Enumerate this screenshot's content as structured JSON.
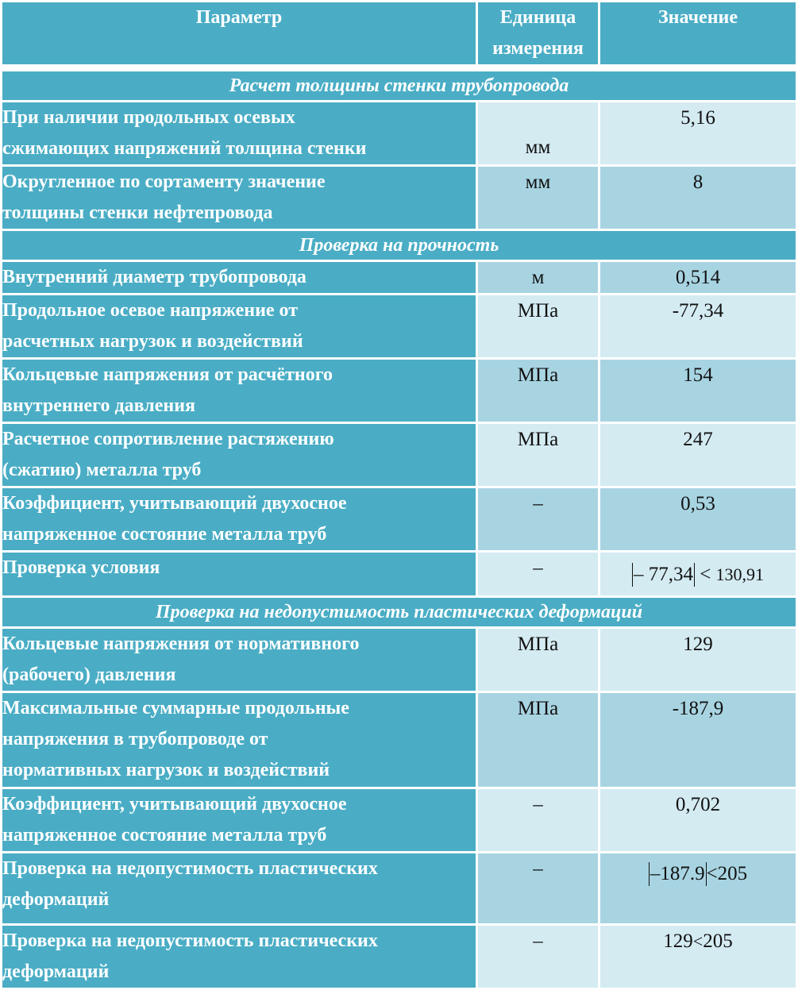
{
  "header": {
    "param": "Параметр",
    "unit_line1": "Единица",
    "unit_line2": "измерения",
    "value": "Значение"
  },
  "sections": {
    "s1": "Расчет толщины стенки трубопровода",
    "s2": "Проверка на прочность",
    "s3": "Проверка на недопустимость пластических деформаций"
  },
  "rows": {
    "r1": {
      "line1": "При наличии продольных осевых",
      "line2": "сжимающих напряжений толщина стенки",
      "unit": "мм",
      "value": "5,16"
    },
    "r2": {
      "line1": "Округленное по сортаменту значение",
      "line2": "толщины стенки нефтепровода",
      "unit": "мм",
      "value": "8"
    },
    "r3": {
      "line1": "Внутренний диаметр трубопровода",
      "unit": "м",
      "value": "0,514"
    },
    "r4": {
      "line1": "Продольное осевое напряжение от",
      "line2": "расчетных нагрузок и воздействий",
      "unit": "МПа",
      "value": "-77,34"
    },
    "r5": {
      "line1": "Кольцевые напряжения от расчётного",
      "line2": "внутреннего давления",
      "unit": "МПа",
      "value": "154"
    },
    "r6": {
      "line1": "Расчетное сопротивление растяжению",
      "line2": "(сжатию) металла труб",
      "unit": "МПа",
      "value": "247"
    },
    "r7": {
      "line1": "Коэффициент, учитывающий двухосное",
      "line2": "напряженное состояние металла труб",
      "unit": "–",
      "value": "0,53"
    },
    "r8": {
      "line1": "Проверка условия",
      "unit": "–",
      "value_abs": "– 77,34",
      "value_op": "<",
      "value_rhs": "130,91"
    },
    "r9": {
      "line1": "Кольцевые напряжения от нормативного",
      "line2": "(рабочего) давления",
      "unit": "МПа",
      "value": "129"
    },
    "r10": {
      "line1": "Максимальные суммарные продольные",
      "line2": "напряжения в трубопроводе от",
      "line3": "нормативных нагрузок и воздействий",
      "unit": "МПа",
      "value": "-187,9"
    },
    "r11": {
      "line1": "Коэффициент, учитывающий двухосное",
      "line2": "напряженное состояние металла труб",
      "unit": "–",
      "value": "0,702"
    },
    "r12": {
      "line1": "Проверка на недопустимость пластических",
      "line2": "деформаций",
      "unit": "–",
      "value_abs": "–187.9",
      "value_op": "<",
      "value_rhs": "205"
    },
    "r13": {
      "line1": "Проверка на недопустимость пластических",
      "line2": "деформаций",
      "unit": "–",
      "value_lhs": "129",
      "value_op": "<",
      "value_rhs": "205"
    }
  },
  "colors": {
    "header_bg": "#4aadc5",
    "cell_dark": "#a8d4e2",
    "cell_light": "#d4ebf2"
  }
}
